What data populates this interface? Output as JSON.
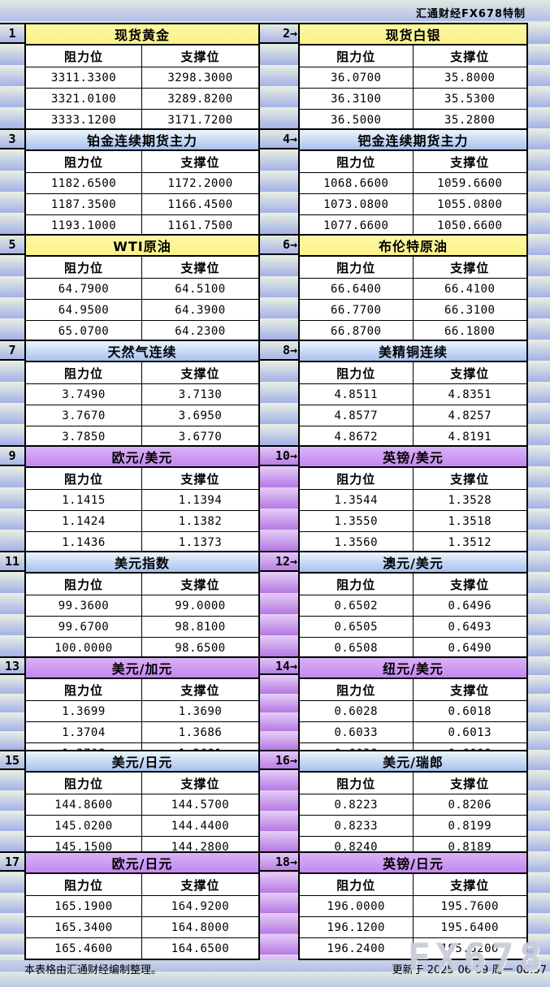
{
  "header": {
    "brand": "汇通财经FX678特制"
  },
  "footer": {
    "note": "本表格由汇通财经编制整理。",
    "updated": "更新于 2025-06-09 周一 08:57",
    "watermark": "FX678"
  },
  "colors": {
    "brand_red": "#c00000",
    "title_yellow": "#fbf48f",
    "title_blue_top": "#ebf5fd",
    "title_blue_bottom": "#a6c2ee",
    "title_purple_top": "#d9b3f6",
    "title_purple_bottom": "#c487f0",
    "stripe_cool_top": "#e9f0e1",
    "stripe_cool_bottom": "#a4b0e8",
    "stripe_purple_top": "#e5cff7",
    "stripe_purple_bottom": "#b678e3"
  },
  "chart_data": [
    {
      "type": "table",
      "label": "1",
      "title": "现货黄金",
      "theme": "yellow",
      "columns": [
        "阻力位",
        "支撑位"
      ],
      "rows": [
        [
          "3311.3300",
          "3298.3000"
        ],
        [
          "3321.0100",
          "3289.8200"
        ],
        [
          "3333.1200",
          "3171.7200"
        ]
      ]
    },
    {
      "type": "table",
      "label": "2→",
      "title": "现货白银",
      "theme": "yellow",
      "columns": [
        "阻力位",
        "支撑位"
      ],
      "rows": [
        [
          "36.0700",
          "35.8000"
        ],
        [
          "36.3100",
          "35.5300"
        ],
        [
          "36.5000",
          "35.2800"
        ]
      ]
    },
    {
      "type": "table",
      "label": "3",
      "title": "铂金连续期货主力",
      "theme": "blue",
      "columns": [
        "阻力位",
        "支撑位"
      ],
      "rows": [
        [
          "1182.6500",
          "1172.2000"
        ],
        [
          "1187.3500",
          "1166.4500"
        ],
        [
          "1193.1000",
          "1161.7500"
        ]
      ]
    },
    {
      "type": "table",
      "label": "4→",
      "title": "钯金连续期货主力",
      "theme": "blue",
      "columns": [
        "阻力位",
        "支撑位"
      ],
      "rows": [
        [
          "1068.6600",
          "1059.6600"
        ],
        [
          "1073.0800",
          "1055.0800"
        ],
        [
          "1077.6600",
          "1050.6600"
        ]
      ]
    },
    {
      "type": "table",
      "label": "5",
      "title": "WTI原油",
      "theme": "yellow",
      "columns": [
        "阻力位",
        "支撑位"
      ],
      "rows": [
        [
          "64.7900",
          "64.5100"
        ],
        [
          "64.9500",
          "64.3900"
        ],
        [
          "65.0700",
          "64.2300"
        ]
      ]
    },
    {
      "type": "table",
      "label": "6→",
      "title": "布伦特原油",
      "theme": "yellow",
      "columns": [
        "阻力位",
        "支撑位"
      ],
      "rows": [
        [
          "66.6400",
          "66.4100"
        ],
        [
          "66.7700",
          "66.3100"
        ],
        [
          "66.8700",
          "66.1800"
        ]
      ]
    },
    {
      "type": "table",
      "label": "7",
      "title": "天然气连续",
      "theme": "blue",
      "columns": [
        "阻力位",
        "支撑位"
      ],
      "rows": [
        [
          "3.7490",
          "3.7130"
        ],
        [
          "3.7670",
          "3.6950"
        ],
        [
          "3.7850",
          "3.6770"
        ]
      ]
    },
    {
      "type": "table",
      "label": "8→",
      "title": "美精铜连续",
      "theme": "blue",
      "columns": [
        "阻力位",
        "支撑位"
      ],
      "rows": [
        [
          "4.8511",
          "4.8351"
        ],
        [
          "4.8577",
          "4.8257"
        ],
        [
          "4.8672",
          "4.8191"
        ]
      ]
    },
    {
      "type": "table",
      "label": "9",
      "title": "欧元/美元",
      "theme": "purple",
      "columns": [
        "阻力位",
        "支撑位"
      ],
      "rows": [
        [
          "1.1415",
          "1.1394"
        ],
        [
          "1.1424",
          "1.1382"
        ],
        [
          "1.1436",
          "1.1373"
        ]
      ]
    },
    {
      "type": "table",
      "label": "10→",
      "title": "英镑/美元",
      "theme": "purple",
      "columns": [
        "阻力位",
        "支撑位"
      ],
      "rows": [
        [
          "1.3544",
          "1.3528"
        ],
        [
          "1.3550",
          "1.3518"
        ],
        [
          "1.3560",
          "1.3512"
        ]
      ]
    },
    {
      "type": "table",
      "label": "11",
      "title": "美元指数",
      "theme": "blue",
      "columns": [
        "阻力位",
        "支撑位"
      ],
      "rows": [
        [
          "99.3600",
          "99.0000"
        ],
        [
          "99.6700",
          "98.8100"
        ],
        [
          "100.0000",
          "98.6500"
        ]
      ]
    },
    {
      "type": "table",
      "label": "12→",
      "title": "澳元/美元",
      "theme": "blue",
      "columns": [
        "阻力位",
        "支撑位"
      ],
      "rows": [
        [
          "0.6502",
          "0.6496"
        ],
        [
          "0.6505",
          "0.6493"
        ],
        [
          "0.6508",
          "0.6490"
        ]
      ]
    },
    {
      "type": "table",
      "label": "13",
      "title": "美元/加元",
      "theme": "purple",
      "columns": [
        "阻力位",
        "支撑位"
      ],
      "rows": [
        [
          "1.3699",
          "1.3690"
        ],
        [
          "1.3704",
          "1.3686"
        ],
        [
          "1.3708",
          "1.3681"
        ]
      ]
    },
    {
      "type": "table",
      "label": "14→",
      "title": "纽元/美元",
      "theme": "purple",
      "columns": [
        "阻力位",
        "支撑位"
      ],
      "rows": [
        [
          "0.6028",
          "0.6018"
        ],
        [
          "0.6033",
          "0.6013"
        ],
        [
          "0.6038",
          "0.6008"
        ]
      ]
    },
    {
      "type": "table",
      "label": "15",
      "title": "美元/日元",
      "theme": "blue",
      "columns": [
        "阻力位",
        "支撑位"
      ],
      "rows": [
        [
          "144.8600",
          "144.5700"
        ],
        [
          "145.0200",
          "144.4400"
        ],
        [
          "145.1500",
          "144.2800"
        ]
      ]
    },
    {
      "type": "table",
      "label": "16→",
      "title": "美元/瑞郎",
      "theme": "blue",
      "columns": [
        "阻力位",
        "支撑位"
      ],
      "rows": [
        [
          "0.8223",
          "0.8206"
        ],
        [
          "0.8233",
          "0.8199"
        ],
        [
          "0.8240",
          "0.8189"
        ]
      ]
    },
    {
      "type": "table",
      "label": "17",
      "title": "欧元/日元",
      "theme": "purple",
      "columns": [
        "阻力位",
        "支撑位"
      ],
      "rows": [
        [
          "165.1900",
          "164.9200"
        ],
        [
          "165.3400",
          "164.8000"
        ],
        [
          "165.4600",
          "164.6500"
        ]
      ]
    },
    {
      "type": "table",
      "label": "18→",
      "title": "英镑/日元",
      "theme": "purple",
      "columns": [
        "阻力位",
        "支撑位"
      ],
      "rows": [
        [
          "196.0000",
          "195.7600"
        ],
        [
          "196.1200",
          "195.6400"
        ],
        [
          "196.2400",
          "195.5200"
        ]
      ]
    }
  ]
}
